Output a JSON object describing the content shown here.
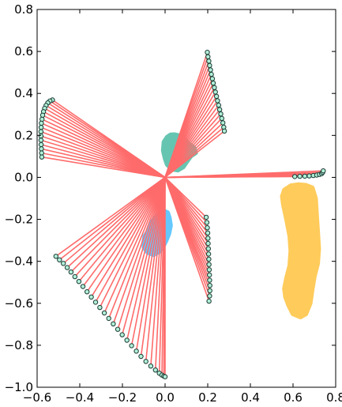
{
  "chart_data": {
    "type": "scatter",
    "title": "",
    "xlabel": "",
    "ylabel": "",
    "xlim": [
      -0.6,
      0.8
    ],
    "ylim": [
      -1.0,
      0.8
    ],
    "xticks": [
      -0.6,
      -0.4,
      -0.2,
      0.0,
      0.2,
      0.4,
      0.6,
      0.8
    ],
    "yticks": [
      -1.0,
      -0.8,
      -0.6,
      -0.4,
      -0.2,
      0.0,
      0.2,
      0.4,
      0.6,
      0.8
    ],
    "xtick_labels": [
      "−0.6",
      "−0.4",
      "−0.2",
      "0.0",
      "0.2",
      "0.4",
      "0.6",
      "0.8"
    ],
    "ytick_labels": [
      "−1.0",
      "−0.8",
      "−0.6",
      "−0.4",
      "−0.2",
      "0.0",
      "0.2",
      "0.4",
      "0.6",
      "0.8"
    ],
    "grid": false,
    "legend": "none",
    "origin": [
      0.0,
      0.0
    ],
    "colors": {
      "ray": "#ff6b6b",
      "marker_fill": "#b2f0d8",
      "marker_edge": "#1b3a34",
      "teal": "#66c5b1",
      "blue": "#64c8ff",
      "yellow": "#ffcb5a"
    },
    "arcs": [
      {
        "name": "upper-left",
        "points": [
          [
            -0.528,
            0.369
          ],
          [
            -0.54,
            0.364
          ],
          [
            -0.55,
            0.355
          ],
          [
            -0.558,
            0.343
          ],
          [
            -0.565,
            0.329
          ],
          [
            -0.57,
            0.313
          ],
          [
            -0.574,
            0.296
          ],
          [
            -0.577,
            0.277
          ],
          [
            -0.58,
            0.258
          ],
          [
            -0.581,
            0.238
          ],
          [
            -0.582,
            0.218
          ],
          [
            -0.582,
            0.197
          ],
          [
            -0.582,
            0.177
          ],
          [
            -0.581,
            0.156
          ],
          [
            -0.58,
            0.136
          ],
          [
            -0.579,
            0.116
          ],
          [
            -0.578,
            0.097
          ]
        ]
      },
      {
        "name": "upper-right",
        "points": [
          [
            0.198,
            0.596
          ],
          [
            0.201,
            0.575
          ],
          [
            0.205,
            0.554
          ],
          [
            0.209,
            0.533
          ],
          [
            0.213,
            0.512
          ],
          [
            0.217,
            0.491
          ],
          [
            0.222,
            0.47
          ],
          [
            0.226,
            0.449
          ],
          [
            0.231,
            0.428
          ],
          [
            0.236,
            0.407
          ],
          [
            0.241,
            0.386
          ],
          [
            0.246,
            0.365
          ],
          [
            0.251,
            0.344
          ],
          [
            0.256,
            0.323
          ],
          [
            0.261,
            0.302
          ],
          [
            0.266,
            0.281
          ],
          [
            0.271,
            0.26
          ],
          [
            0.275,
            0.239
          ],
          [
            0.278,
            0.221
          ]
        ]
      },
      {
        "name": "right",
        "points": [
          [
            0.608,
            0.004
          ],
          [
            0.632,
            0.005
          ],
          [
            0.655,
            0.006
          ],
          [
            0.676,
            0.007
          ],
          [
            0.695,
            0.009
          ],
          [
            0.711,
            0.011
          ],
          [
            0.724,
            0.014
          ],
          [
            0.734,
            0.018
          ],
          [
            0.739,
            0.024
          ],
          [
            0.742,
            0.031
          ]
        ]
      },
      {
        "name": "middle-right",
        "points": [
          [
            0.193,
            -0.19
          ],
          [
            0.196,
            -0.215
          ],
          [
            0.198,
            -0.24
          ],
          [
            0.2,
            -0.265
          ],
          [
            0.201,
            -0.29
          ],
          [
            0.202,
            -0.315
          ],
          [
            0.203,
            -0.34
          ],
          [
            0.204,
            -0.365
          ],
          [
            0.205,
            -0.39
          ],
          [
            0.206,
            -0.415
          ],
          [
            0.207,
            -0.44
          ],
          [
            0.208,
            -0.465
          ],
          [
            0.209,
            -0.49
          ],
          [
            0.21,
            -0.515
          ],
          [
            0.21,
            -0.54
          ],
          [
            0.209,
            -0.565
          ],
          [
            0.206,
            -0.59
          ]
        ]
      },
      {
        "name": "lower-left",
        "points": [
          [
            -0.512,
            -0.376
          ],
          [
            -0.495,
            -0.393
          ],
          [
            -0.477,
            -0.41
          ],
          [
            -0.459,
            -0.43
          ],
          [
            -0.441,
            -0.451
          ],
          [
            -0.423,
            -0.473
          ],
          [
            -0.404,
            -0.496
          ],
          [
            -0.385,
            -0.52
          ],
          [
            -0.366,
            -0.545
          ],
          [
            -0.346,
            -0.57
          ],
          [
            -0.326,
            -0.595
          ],
          [
            -0.306,
            -0.62
          ],
          [
            -0.285,
            -0.646
          ],
          [
            -0.264,
            -0.672
          ],
          [
            -0.243,
            -0.698
          ],
          [
            -0.222,
            -0.724
          ],
          [
            -0.201,
            -0.75
          ],
          [
            -0.179,
            -0.776
          ],
          [
            -0.157,
            -0.802
          ],
          [
            -0.135,
            -0.828
          ],
          [
            -0.113,
            -0.853
          ],
          [
            -0.09,
            -0.877
          ],
          [
            -0.067,
            -0.899
          ],
          [
            -0.045,
            -0.918
          ],
          [
            -0.027,
            -0.933
          ],
          [
            -0.015,
            -0.942
          ],
          [
            -0.006,
            -0.947
          ],
          [
            0.0,
            -0.95
          ]
        ]
      }
    ],
    "blobs": [
      {
        "name": "teal",
        "color": "#66c5b1",
        "outline": [
          [
            -0.005,
            0.168
          ],
          [
            0.01,
            0.191
          ],
          [
            0.025,
            0.202
          ],
          [
            0.045,
            0.203
          ],
          [
            0.072,
            0.197
          ],
          [
            0.09,
            0.181
          ],
          [
            0.11,
            0.161
          ],
          [
            0.135,
            0.141
          ],
          [
            0.143,
            0.117
          ],
          [
            0.122,
            0.103
          ],
          [
            0.105,
            0.08
          ],
          [
            0.085,
            0.05
          ],
          [
            0.06,
            0.035
          ],
          [
            0.03,
            0.04
          ],
          [
            0.01,
            0.062
          ],
          [
            0.0,
            0.092
          ],
          [
            -0.008,
            0.128
          ]
        ]
      },
      {
        "name": "blue",
        "color": "#64c8ff",
        "outline": [
          [
            0.0,
            -0.163
          ],
          [
            0.012,
            -0.168
          ],
          [
            0.02,
            -0.195
          ],
          [
            0.025,
            -0.23
          ],
          [
            0.017,
            -0.27
          ],
          [
            0.005,
            -0.3
          ],
          [
            -0.01,
            -0.33
          ],
          [
            -0.03,
            -0.355
          ],
          [
            -0.055,
            -0.368
          ],
          [
            -0.08,
            -0.358
          ],
          [
            -0.098,
            -0.335
          ],
          [
            -0.1,
            -0.31
          ],
          [
            -0.095,
            -0.28
          ],
          [
            -0.075,
            -0.25
          ],
          [
            -0.06,
            -0.21
          ],
          [
            -0.04,
            -0.185
          ],
          [
            -0.02,
            -0.168
          ]
        ]
      },
      {
        "name": "yellow",
        "color": "#ffcb5a",
        "outline": [
          [
            0.56,
            -0.06
          ],
          [
            0.59,
            -0.04
          ],
          [
            0.625,
            -0.035
          ],
          [
            0.66,
            -0.038
          ],
          [
            0.69,
            -0.05
          ],
          [
            0.705,
            -0.1
          ],
          [
            0.71,
            -0.18
          ],
          [
            0.715,
            -0.26
          ],
          [
            0.72,
            -0.34
          ],
          [
            0.715,
            -0.41
          ],
          [
            0.7,
            -0.47
          ],
          [
            0.69,
            -0.53
          ],
          [
            0.68,
            -0.6
          ],
          [
            0.66,
            -0.65
          ],
          [
            0.635,
            -0.665
          ],
          [
            0.6,
            -0.65
          ],
          [
            0.58,
            -0.61
          ],
          [
            0.565,
            -0.57
          ],
          [
            0.56,
            -0.53
          ],
          [
            0.57,
            -0.48
          ],
          [
            0.585,
            -0.42
          ],
          [
            0.59,
            -0.35
          ],
          [
            0.585,
            -0.28
          ],
          [
            0.57,
            -0.2
          ],
          [
            0.555,
            -0.13
          ],
          [
            0.55,
            -0.09
          ]
        ]
      }
    ]
  }
}
